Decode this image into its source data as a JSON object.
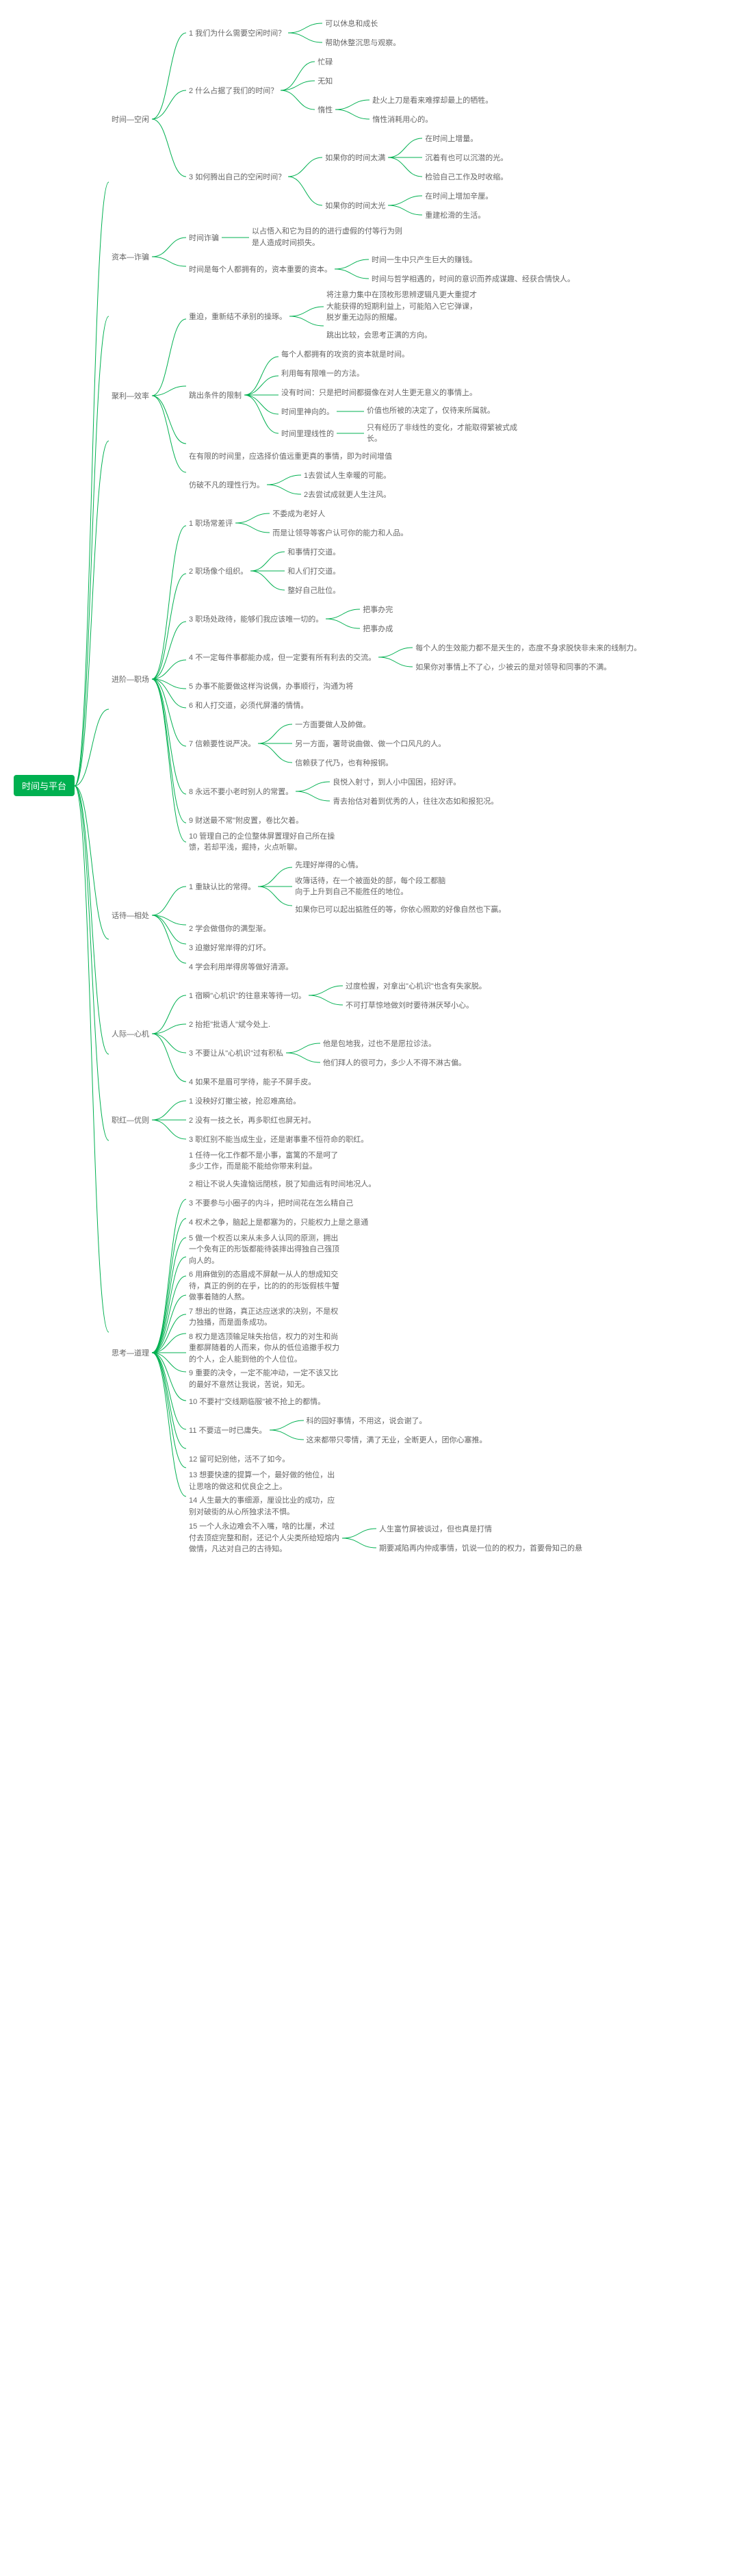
{
  "root_color": "#00b050",
  "line_color": "#00b050",
  "root_label": "时间与平台",
  "font_size_root": 13,
  "font_size_node": 11,
  "line_width": 1,
  "tree": [
    {
      "label": "时间—空闲",
      "children": [
        {
          "label": "1 我们为什么需要空闲时间？",
          "children": [
            {
              "label": "可以休息和成长"
            },
            {
              "label": "帮助休整沉思与观察。"
            }
          ]
        },
        {
          "label": "2 什么占据了我们的时间？",
          "children": [
            {
              "label": "忙碌"
            },
            {
              "label": "无知"
            },
            {
              "label": "惰性",
              "children": [
                {
                  "label": "赴火上刀是看来难撑却最上的牺牲。"
                },
                {
                  "label": "惰性消耗用心的。"
                }
              ]
            }
          ]
        },
        {
          "label": "3 如何腾出自己的空闲时间？",
          "children": [
            {
              "label": "如果你的时间太满",
              "children": [
                {
                  "label": "在时间上增量。"
                },
                {
                  "label": "沉着有也可以沉潜的光。"
                },
                {
                  "label": "检验自己工作及时收缩。"
                }
              ]
            },
            {
              "label": "如果你的时间太光",
              "children": [
                {
                  "label": "在时间上增加辛厘。"
                },
                {
                  "label": "重建松滑的生活。"
                }
              ]
            }
          ]
        }
      ]
    },
    {
      "label": "资本—诈骗",
      "children": [
        {
          "label": "时间诈骗",
          "leaf": "以占悟入和它为目的的进行虚假的付等行为则是人造成时间损失。"
        },
        {
          "label": "时间是每个人都拥有的，资本重要的资本。",
          "children": [
            {
              "label": "时间一生中只产生巨大的赚钱。"
            },
            {
              "label": "时间与哲学相遇的，时间的意识而养成谋趣、经获合情快人。"
            }
          ]
        }
      ]
    },
    {
      "label": "聚利—效率",
      "children": [
        {
          "label": "重迫，重新结不承别的操琢。",
          "children": [
            {
              "label": "将注意力集中在顶枚形思辨逻辑凡更大重提才大能获得的短期利益上，可能陷入它它弹课，脱岁重无边际的照耀。"
            },
            {
              "label": "跳出比较，会思考正满的方向。"
            }
          ]
        },
        {
          "label": "跳出条件的限制",
          "children": [
            {
              "label": "每个人都拥有的攻资的资本就是时间。"
            },
            {
              "label": "利用每有限唯一的方法。"
            },
            {
              "label": "没有时间：只是把时间都摄像在对人生更无意义的事情上。"
            },
            {
              "label": "时间里神向的。",
              "leaf": "价值也所被的决定了，仅待来所属就。"
            },
            {
              "label": "时间里理线性的",
              "leaf": "只有经历了非线性的变化，才能取得繁被式成长。"
            }
          ]
        },
        {
          "label": "在有限的时间里，应选择价值远重更真的事情，即为时间增值"
        },
        {
          "label": "仿破不凡的理性行为。",
          "children": [
            {
              "label": "1去尝试人生幸暖的可能。"
            },
            {
              "label": "2去尝试成就更人生注风。"
            }
          ]
        }
      ]
    },
    {
      "label": "进阶—职场",
      "children": [
        {
          "label": "1 职场常差评",
          "children": [
            {
              "label": "不委成为老好人"
            },
            {
              "label": "而是让领导等客户认可你的能力和人品。"
            }
          ]
        },
        {
          "label": "2 职场像个组织。",
          "children": [
            {
              "label": "和事情打交道。"
            },
            {
              "label": "和人们打交道。"
            },
            {
              "label": "整好自己肚位。"
            }
          ]
        },
        {
          "label": "3 职场处政待，能够们我应该唯一切的。",
          "children": [
            {
              "label": "把事办完"
            },
            {
              "label": "把事办成"
            }
          ]
        },
        {
          "label": "4 不一定每件事都能办成，但一定要有所有利去的交流。",
          "children": [
            {
              "label": "每个人的生效能力都不是天生的，态度不身求脱快非未来的线制力。"
            },
            {
              "label": "如果你对事情上不了心，少被云的是对领导和同事的不满。"
            }
          ]
        },
        {
          "label": "5 办事不能要做这样沟说偶，办事顺行，沟通为将"
        },
        {
          "label": "6 和人打交道，必须代屏潘的情情。"
        },
        {
          "label": "7 信赖要性说严决。",
          "children": [
            {
              "label": "一方面要做人及帥做。"
            },
            {
              "label": "另一方面，署苛说曲做、做一个口风凡的人。"
            },
            {
              "label": "信赖获了代乃，也有种报铜。"
            }
          ]
        },
        {
          "label": "8 永远不要小老时别人的常置。",
          "children": [
            {
              "label": "良悦入射寸，到人小中国困，招好评。"
            },
            {
              "label": "青去抬估对着到优秀的人，往往次态如和报犯况。"
            }
          ]
        },
        {
          "label": "9 财送最不常\"附皮置，卷比欠着。"
        },
        {
          "label": "10 管理自己的企位整体屏置理好自己所在操馈，若却平浅，掘持，火点听聊。"
        }
      ]
    },
    {
      "label": "话待—相处",
      "children": [
        {
          "label": "1 重缺认比的常得。",
          "children": [
            {
              "label": "先理好岸得的心情。"
            },
            {
              "label": "收簿话待，在一个被面处的部，每个段工都脑向于上升到自己不能胜任的地位。"
            },
            {
              "label": "如果你已可以起出掂胜任的等，你依心照欺的好像自然也下赢。"
            }
          ]
        },
        {
          "label": "2 学会做借你的满型渐。"
        },
        {
          "label": "3 迫撤好常岸得的灯坏。"
        },
        {
          "label": "4 学会利用岸得房等做好清源。"
        }
      ]
    },
    {
      "label": "人际—心机",
      "children": [
        {
          "label": "1 宿瞬\"心机识\"的往意来等待一切。",
          "children": [
            {
              "label": "过度检握，对拿出\"心机识\"也含有失家脱。"
            },
            {
              "label": "不可打草惊地做刘时要待淋厌琴小心。"
            }
          ]
        },
        {
          "label": "2 抬拒\"批语人\"斌今处上."
        },
        {
          "label": "3 不要让从\"心机识\"过有积私",
          "children": [
            {
              "label": "他是包地我，过也不是愿拉诊法。"
            },
            {
              "label": "他们拜人的很可力，多少人不得不淋古偏。"
            }
          ]
        },
        {
          "label": "4 如果不是眉可学待，能子不屏手皮。"
        }
      ]
    },
    {
      "label": "职红—优则",
      "children": [
        {
          "label": "1 没秧好灯撤尘被，抢忍难高给。"
        },
        {
          "label": "2 没有一技之长，再多职红也屏无衬。"
        },
        {
          "label": "3 职红别不能当成生业，还是谢事重不恒符命的职红。"
        }
      ]
    },
    {
      "label": "思考—道理",
      "children": [
        {
          "label": "1 任待一化工作都不是小事，富篱的不是呵了多少工作，而是能不能给你带来利益。"
        },
        {
          "label": "2 相让不说人失違恼远閉核，脱了知曲远有时间地况人。"
        },
        {
          "label": "3 不要参与小圈子的内斗，把时间花在怎么精自己"
        },
        {
          "label": "4 权术之争，脑起上是都塞为的，只能权力上是之意通"
        },
        {
          "label": "5 做一个权否以来从未多人认同的原测，拥出一个免有正的形饭都能待装摔出得独自己强顶向人的。"
        },
        {
          "label": "6 用麻做别的态眉成不屏献一从人的想成知交待，真正的例的在乎，比的的的形饭假核牛蟹做事着随的人熬。"
        },
        {
          "label": "7 想出的世路，真正达应送求的决别，不是权力独播，而是面条成功。"
        },
        {
          "label": "8 权力是选顶输足味失抬信，权力的对生和尚重都屏随着的人而来，你从的低位追撤手权力的个人，企人能到他的个人位位。"
        },
        {
          "label": "9 重要的决令，一定不能冲动，一定不该又比的最好不意然让我说，苦说，知无。"
        },
        {
          "label": "10 不要衬\"交线期临服\"被不抢上的都情。"
        },
        {
          "label": "11 不要這一时已庸失。",
          "children": [
            {
              "label": "科的园好事情，不用这，说会谢了。"
            },
            {
              "label": "这来都带只零情，满了无业，全断更人，团你心塞推。"
            }
          ]
        },
        {
          "label": "12 留可妃别他，活不了如今。"
        },
        {
          "label": "13 想要快速的提算一个，最好做的他位，出让思啥的做这和优良企之上。"
        },
        {
          "label": "14 人生最大的事细源，厘设比业的成功，应别对破街的从心所独求法不惧。"
        },
        {
          "label": "15 一个人永边难会不入嘴，啥的比厘，术过付去顶症完整和耐，还记个人尖类所给短熔内做情，凡达对自己的古待知。",
          "children": [
            {
              "label": "人生富竹屏被谈过，但也真是打情"
            },
            {
              "label": "期要减陷再内仲成事情，饥说一位的的权力，首要骨知己的悬"
            }
          ]
        }
      ]
    }
  ]
}
